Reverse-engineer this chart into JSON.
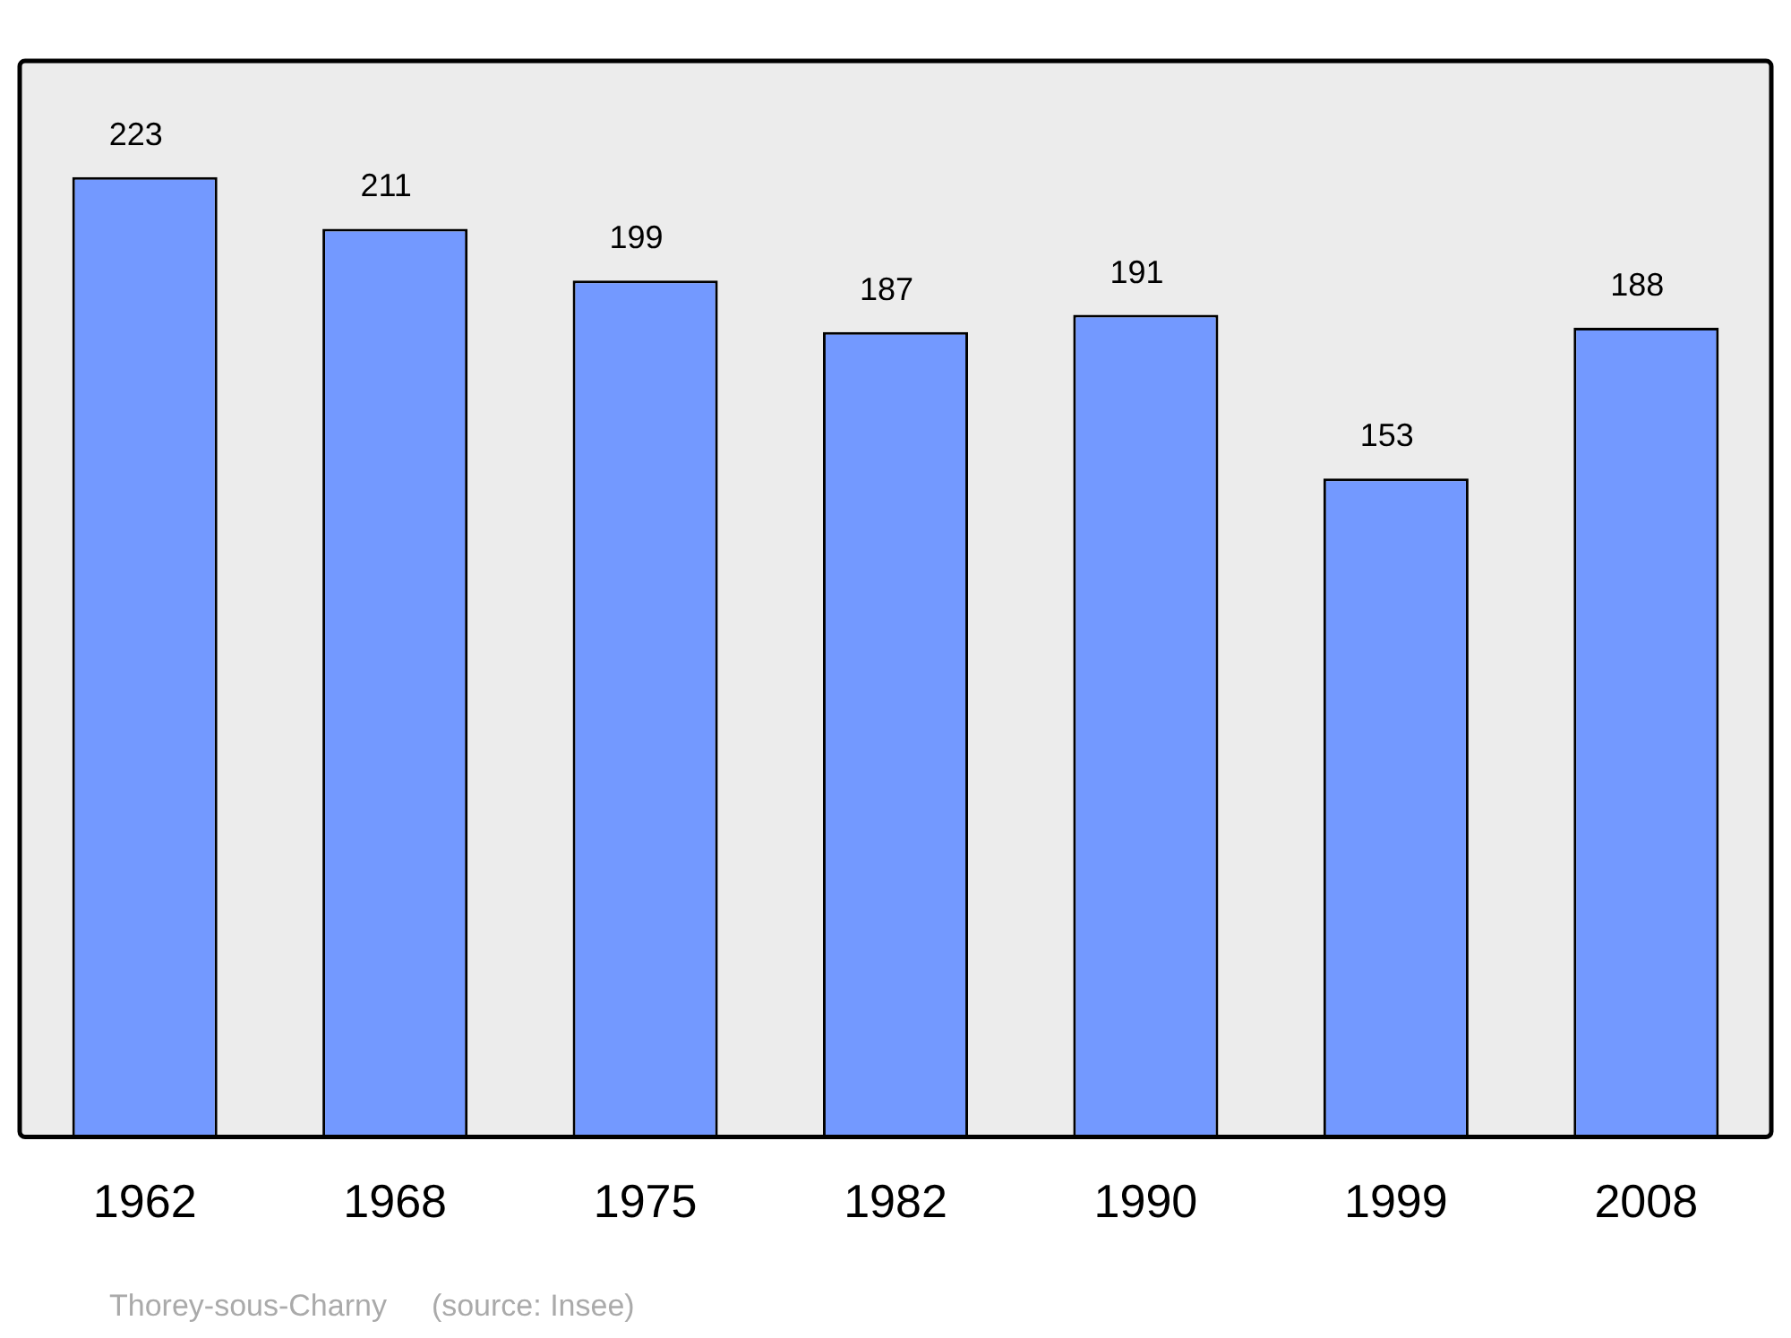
{
  "chart_data": {
    "type": "bar",
    "categories": [
      "1962",
      "1968",
      "1975",
      "1982",
      "1990",
      "1999",
      "2008"
    ],
    "values": [
      223,
      211,
      199,
      187,
      191,
      153,
      188
    ],
    "color": "#7399ff",
    "data_labels": true,
    "grid": false,
    "legend": false,
    "annotations": [
      "Thorey-sous-Charny",
      "(source: Insee)"
    ]
  }
}
